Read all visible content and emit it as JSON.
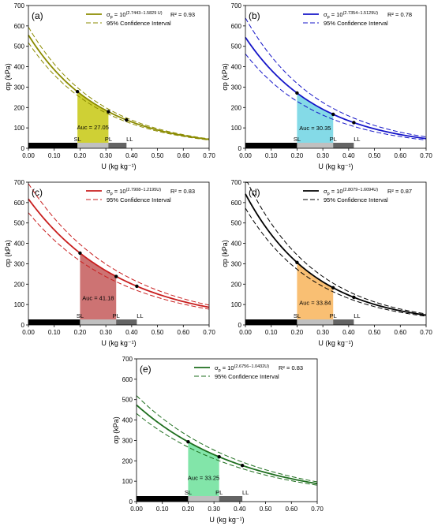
{
  "chart_data": [
    {
      "type": "line",
      "panel_label": "(a)",
      "color": "#8b8b00",
      "fill_color": "#c7c812",
      "equation_base": "σ",
      "equation_sub": "p",
      "equation_mid": " = 10",
      "equation_exp": "(2.7443−1.5829 U)",
      "r2": "R² = 0.93",
      "legend_ci": "95% Confidence Interval",
      "a": 2.7443,
      "b": 1.5829,
      "ci": 0.03,
      "xlabel": "U (kg kg⁻¹)",
      "ylabel": "σp (kPa)",
      "xlim": [
        0,
        0.7
      ],
      "ylim": [
        0,
        700
      ],
      "xticks": [
        "0.00",
        "0.10",
        "0.20",
        "0.30",
        "0.40",
        "0.50",
        "0.60",
        "0.70"
      ],
      "yticks": [
        "0",
        "100",
        "200",
        "300",
        "400",
        "500",
        "600",
        "700"
      ],
      "auc_label": "Auc = 27.05",
      "sl": 0.19,
      "pl": 0.31,
      "ll": 0.38,
      "limit_labels": [
        "SL",
        "PL",
        "LL"
      ]
    },
    {
      "type": "line",
      "panel_label": "(b)",
      "color": "#1515c8",
      "fill_color": "#6fd3e3",
      "equation_base": "σ",
      "equation_sub": "p",
      "equation_mid": " = 10",
      "equation_exp": "(2.7354−1.5129U)",
      "r2": "R² = 0.78",
      "legend_ci": "95% Confidence Interval",
      "a": 2.7354,
      "b": 1.5129,
      "ci": 0.07,
      "xlabel": "U (kg kg⁻¹)",
      "ylabel": "σp (kPa)",
      "xlim": [
        0,
        0.7
      ],
      "ylim": [
        0,
        700
      ],
      "xticks": [
        "0.00",
        "0.10",
        "0.20",
        "0.30",
        "0.40",
        "0.50",
        "0.60",
        "0.70"
      ],
      "yticks": [
        "0",
        "100",
        "200",
        "300",
        "400",
        "500",
        "600",
        "700"
      ],
      "auc_label": "Auc = 30.35",
      "sl": 0.2,
      "pl": 0.34,
      "ll": 0.42,
      "limit_labels": [
        "SL",
        "PL",
        "LL"
      ]
    },
    {
      "type": "line",
      "panel_label": "(c)",
      "color": "#c81e1e",
      "fill_color": "#c45a5a",
      "equation_base": "σ",
      "equation_sub": "p",
      "equation_mid": " = 10",
      "equation_exp": "(2.7908−1.2195U)",
      "r2": "R² = 0.83",
      "legend_ci": "95% Confidence Interval",
      "a": 2.7908,
      "b": 1.2195,
      "ci": 0.05,
      "xlabel": "U (kg kg⁻¹)",
      "ylabel": "σp (kPa)",
      "xlim": [
        0,
        0.7
      ],
      "ylim": [
        0,
        700
      ],
      "xticks": [
        "0.00",
        "0.10",
        "0.20",
        "0.30",
        "0.40",
        "0.50",
        "0.60",
        "0.70"
      ],
      "yticks": [
        "0",
        "100",
        "200",
        "300",
        "400",
        "500",
        "600",
        "700"
      ],
      "auc_label": "Auc = 41.18",
      "sl": 0.2,
      "pl": 0.34,
      "ll": 0.42,
      "limit_labels": [
        "SL",
        "PL",
        "LL"
      ]
    },
    {
      "type": "line",
      "panel_label": "(d)",
      "color": "#000000",
      "fill_color": "#f8b45a",
      "equation_base": "σ",
      "equation_sub": "p",
      "equation_mid": " = 10",
      "equation_exp": "(2.8079−1.6094U)",
      "r2": "R² = 0.87",
      "legend_ci": "95% Confidence Interval",
      "a": 2.8079,
      "b": 1.6094,
      "ci": 0.05,
      "xlabel": "U (kg kg⁻¹)",
      "ylabel": "σp (kPa)",
      "xlim": [
        0,
        0.7
      ],
      "ylim": [
        0,
        700
      ],
      "xticks": [
        "0.00",
        "0.10",
        "0.20",
        "0.30",
        "0.40",
        "0.50",
        "0.60",
        "0.70"
      ],
      "yticks": [
        "0",
        "100",
        "200",
        "300",
        "400",
        "500",
        "600",
        "700"
      ],
      "auc_label": "Auc = 33.84",
      "sl": 0.2,
      "pl": 0.34,
      "ll": 0.42,
      "limit_labels": [
        "SL",
        "PL",
        "LL"
      ]
    },
    {
      "type": "line",
      "panel_label": "(e)",
      "color": "#1e6e1e",
      "fill_color": "#6ce09a",
      "equation_base": "σ",
      "equation_sub": "p",
      "equation_mid": " = 10",
      "equation_exp": "(2.6756−1.0432U)",
      "r2": "R² = 0.83",
      "legend_ci": "95% Confidence Interval",
      "a": 2.6756,
      "b": 1.0432,
      "ci": 0.04,
      "xlabel": "U (kg kg⁻¹)",
      "ylabel": "σp (kPa)",
      "xlim": [
        0,
        0.7
      ],
      "ylim": [
        0,
        700
      ],
      "xticks": [
        "0.00",
        "0.10",
        "0.20",
        "0.30",
        "0.40",
        "0.50",
        "0.60",
        "0.70"
      ],
      "yticks": [
        "0",
        "100",
        "200",
        "300",
        "400",
        "500",
        "600",
        "700"
      ],
      "auc_label": "Auc = 33.25",
      "sl": 0.2,
      "pl": 0.32,
      "ll": 0.41,
      "limit_labels": [
        "SL",
        "PL",
        "LL"
      ]
    }
  ]
}
